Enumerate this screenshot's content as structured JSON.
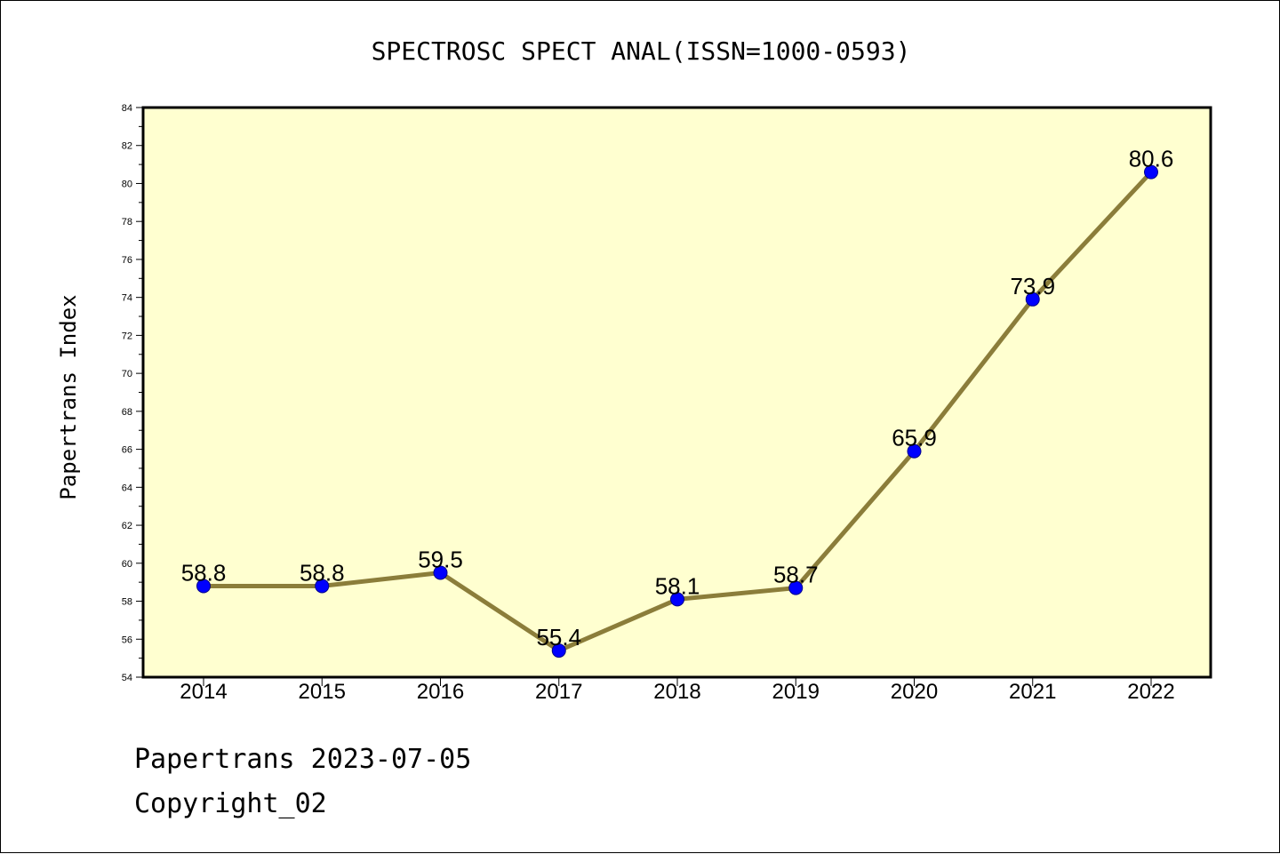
{
  "chart_data": {
    "type": "line",
    "title": "SPECTROSC SPECT ANAL(ISSN=1000-0593)",
    "xlabel": "",
    "ylabel": "Papertrans Index",
    "categories": [
      "2014",
      "2015",
      "2016",
      "2017",
      "2018",
      "2019",
      "2020",
      "2021",
      "2022"
    ],
    "series": [
      {
        "values": [
          58.8,
          58.8,
          59.5,
          55.4,
          58.1,
          58.7,
          65.9,
          73.9,
          80.6
        ]
      }
    ],
    "data_labels": [
      "58.8",
      "58.8",
      "59.5",
      "55.4",
      "58.1",
      "58.7",
      "65.9",
      "73.9",
      "80.6"
    ],
    "ylim": [
      54,
      84
    ],
    "yticks": [
      54,
      56,
      58,
      60,
      62,
      64,
      66,
      68,
      70,
      72,
      74,
      76,
      78,
      80,
      82,
      84
    ],
    "grid": false,
    "legend": "none",
    "colors": {
      "plot_background": "#ffffd0",
      "line": "#8b7d3a",
      "marker": "#0000ff"
    }
  },
  "footer": {
    "line1": "Papertrans 2023-07-05",
    "line2": "Copyright_02"
  }
}
